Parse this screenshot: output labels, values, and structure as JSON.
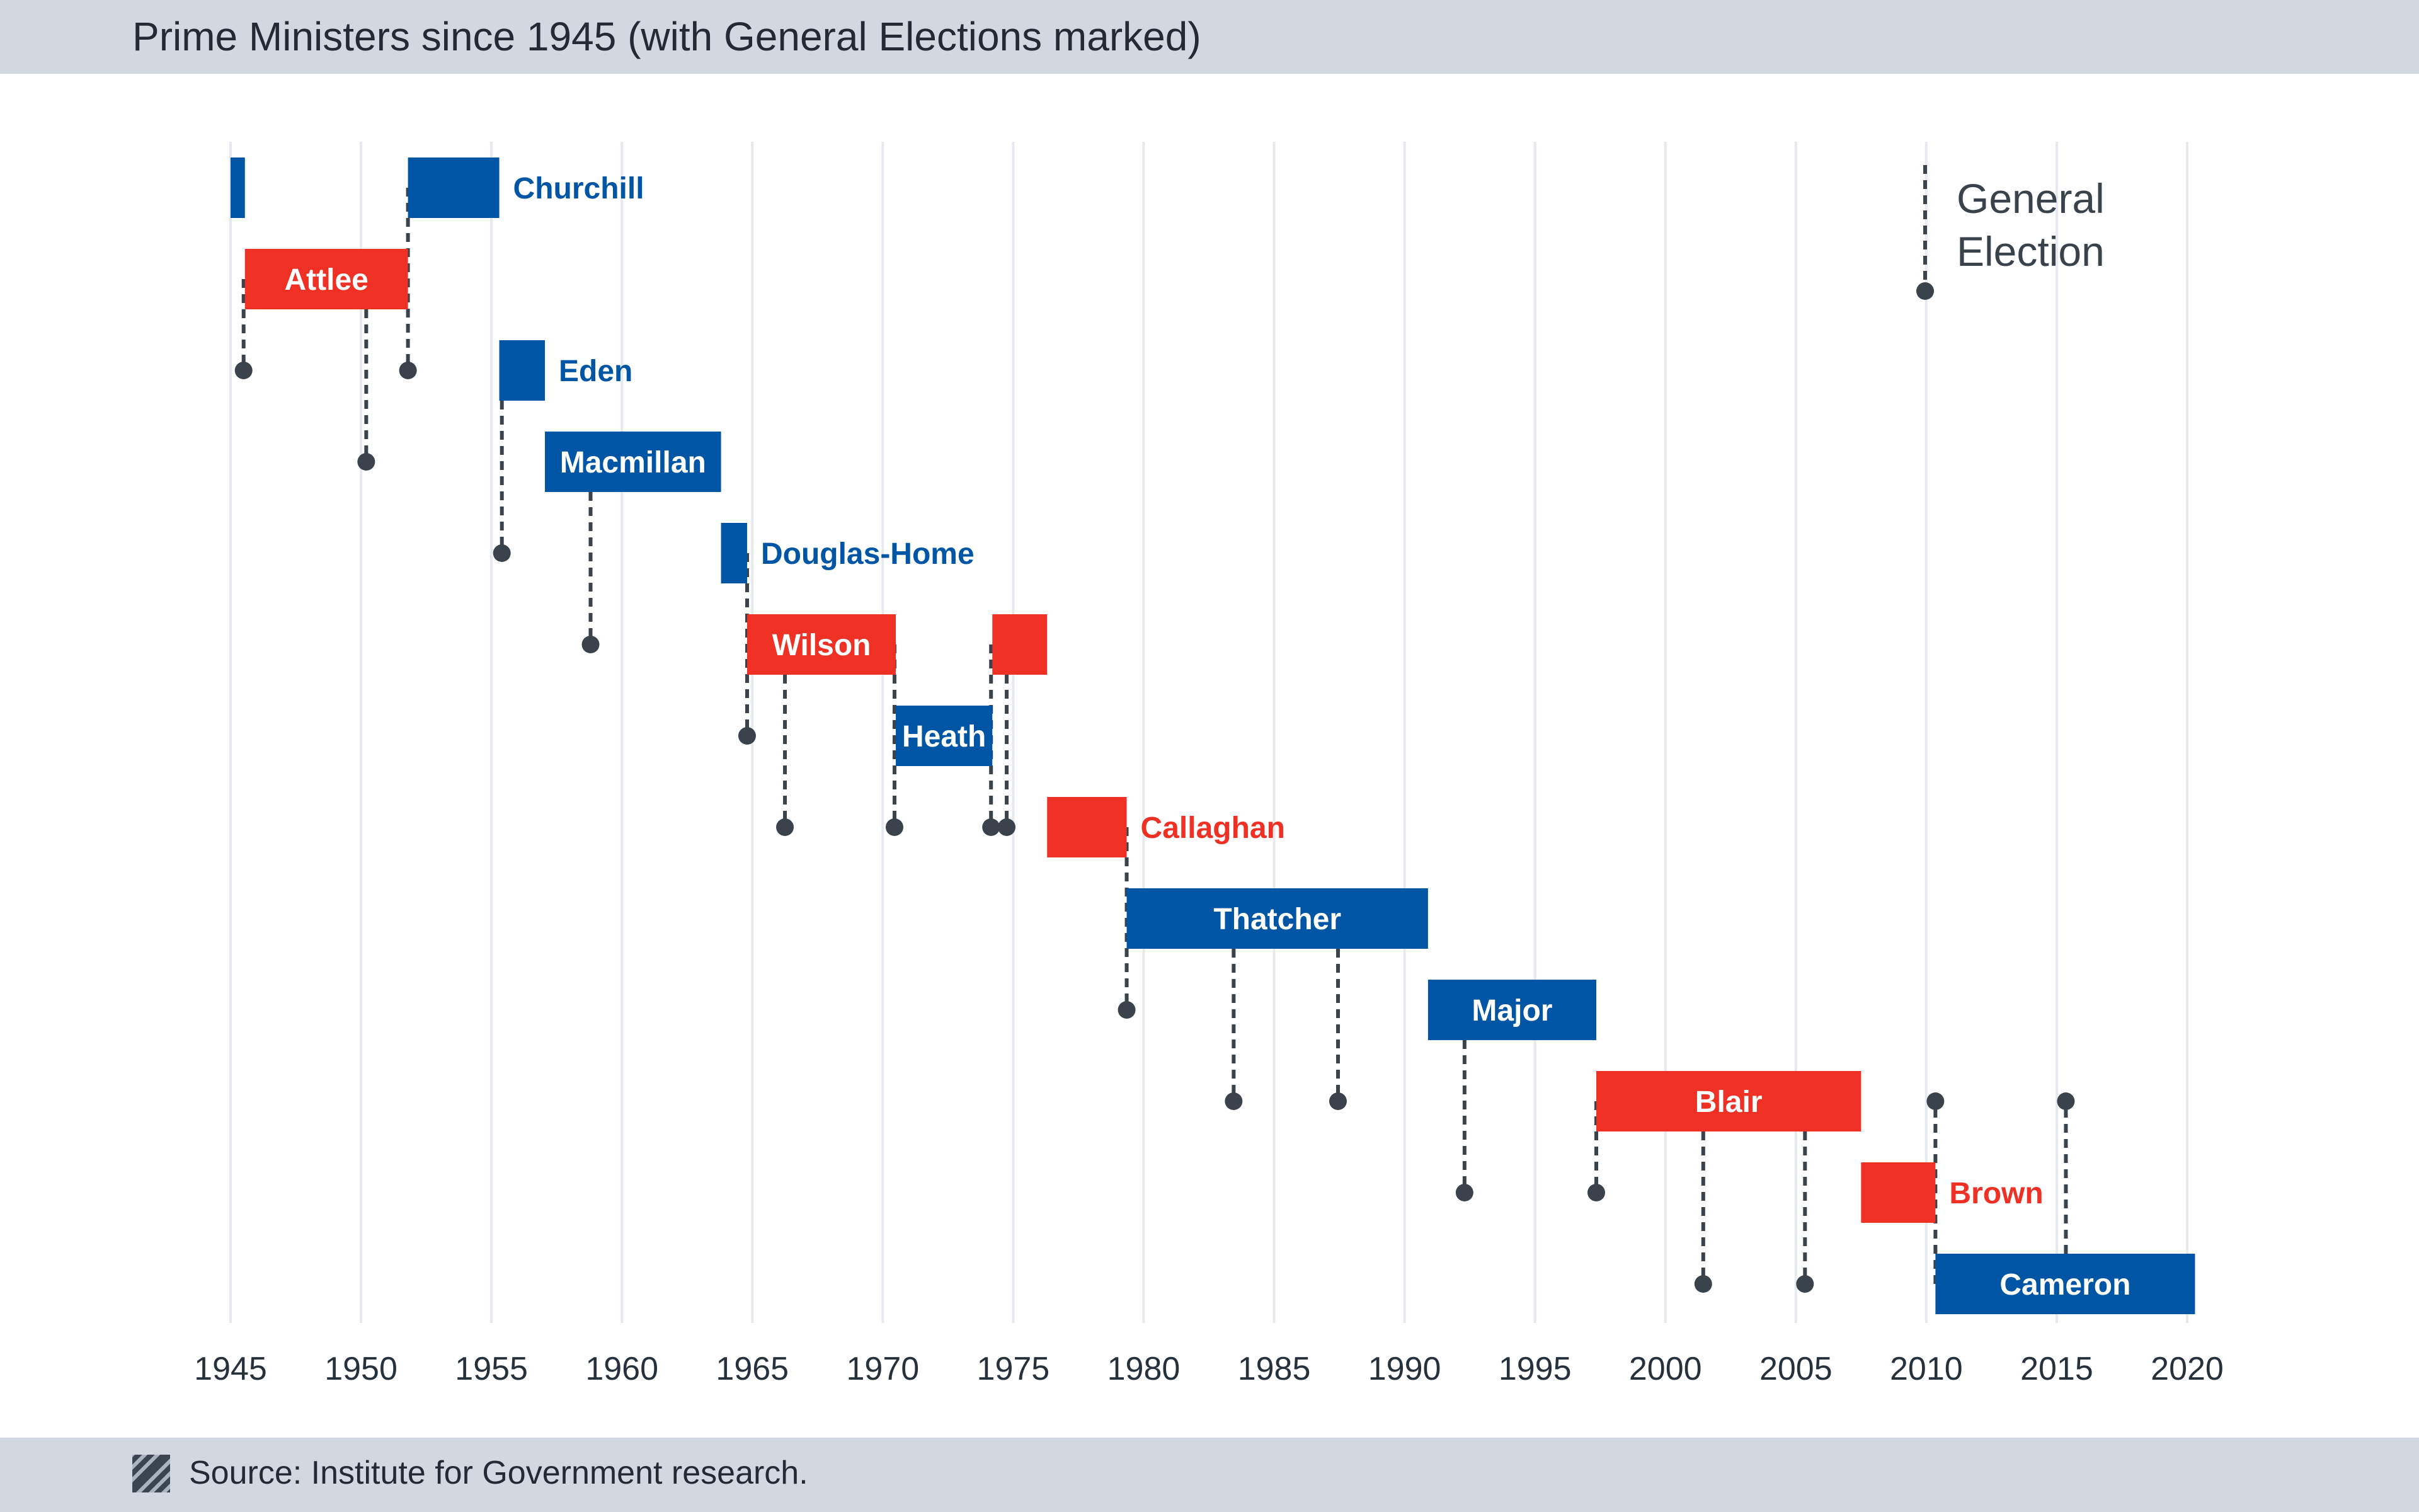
{
  "header": {
    "title": "Prime Ministers since 1945 (with General Elections marked)"
  },
  "footer": {
    "source_text": "Source: Institute for Government research."
  },
  "colors": {
    "labour": "#ee3124",
    "conservative": "#0056a5",
    "election_marker": "#3a424c",
    "gridline": "#e6e9ee",
    "header_bg": "#d2d8e0"
  },
  "chart_data": {
    "type": "timeline",
    "title": "Prime Ministers since 1945 (with General Elections marked)",
    "xlim": [
      1945,
      2020
    ],
    "x_ticks": [
      "1945",
      "1950",
      "1955",
      "1960",
      "1965",
      "1970",
      "1975",
      "1980",
      "1985",
      "1990",
      "1995",
      "2000",
      "2005",
      "2010",
      "2015",
      "2020"
    ],
    "grid": true,
    "legend": {
      "label_line1": "General",
      "label_line2": "Election",
      "placement": "top-right"
    },
    "terms": [
      {
        "name": "",
        "party": "conservative",
        "start": 1945.0,
        "end": 1945.55,
        "row": 0
      },
      {
        "name": "Churchill",
        "party": "conservative",
        "start": 1951.8,
        "end": 1955.3,
        "row": 0,
        "label_pos": "right"
      },
      {
        "name": "Attlee",
        "party": "labour",
        "start": 1945.55,
        "end": 1951.8,
        "row": 1,
        "label_pos": "inside"
      },
      {
        "name": "Eden",
        "party": "conservative",
        "start": 1955.3,
        "end": 1957.05,
        "row": 2,
        "label_pos": "right"
      },
      {
        "name": "Macmillan",
        "party": "conservative",
        "start": 1957.05,
        "end": 1963.8,
        "row": 3,
        "label_pos": "inside"
      },
      {
        "name": "Douglas-Home",
        "party": "conservative",
        "start": 1963.8,
        "end": 1964.8,
        "row": 4,
        "label_pos": "right"
      },
      {
        "name": "Wilson",
        "party": "labour",
        "start": 1964.8,
        "end": 1970.5,
        "row": 5,
        "label_pos": "inside"
      },
      {
        "name": "",
        "party": "labour",
        "start": 1974.2,
        "end": 1976.3,
        "row": 5
      },
      {
        "name": "Heath",
        "party": "conservative",
        "start": 1970.5,
        "end": 1974.2,
        "row": 6,
        "label_pos": "inside"
      },
      {
        "name": "Callaghan",
        "party": "labour",
        "start": 1976.3,
        "end": 1979.35,
        "row": 7,
        "label_pos": "right"
      },
      {
        "name": "Thatcher",
        "party": "conservative",
        "start": 1979.35,
        "end": 1990.9,
        "row": 8,
        "label_pos": "inside"
      },
      {
        "name": "Major",
        "party": "conservative",
        "start": 1990.9,
        "end": 1997.35,
        "row": 9,
        "label_pos": "inside"
      },
      {
        "name": "Blair",
        "party": "labour",
        "start": 1997.35,
        "end": 2007.5,
        "row": 10,
        "label_pos": "inside"
      },
      {
        "name": "Brown",
        "party": "labour",
        "start": 2007.5,
        "end": 2010.35,
        "row": 11,
        "label_pos": "right"
      },
      {
        "name": "Cameron",
        "party": "conservative",
        "start": 2010.35,
        "end": 2020.3,
        "row": 12,
        "label_pos": "inside"
      }
    ],
    "elections": [
      {
        "year": 1945.5,
        "from_row": 1,
        "to_row": 2
      },
      {
        "year": 1950.2,
        "from_row": 1,
        "to_row": 3
      },
      {
        "year": 1951.8,
        "from_row": 0,
        "to_row": 2
      },
      {
        "year": 1955.4,
        "from_row": 2,
        "to_row": 4
      },
      {
        "year": 1958.8,
        "from_row": 3,
        "to_row": 5
      },
      {
        "year": 1964.8,
        "from_row": 4,
        "to_row": 6
      },
      {
        "year": 1966.25,
        "from_row": 5,
        "to_row": 7
      },
      {
        "year": 1970.45,
        "from_row": 5,
        "to_row": 7
      },
      {
        "year": 1974.15,
        "from_row": 5,
        "to_row": 7
      },
      {
        "year": 1974.75,
        "from_row": 5,
        "to_row": 7
      },
      {
        "year": 1979.35,
        "from_row": 7,
        "to_row": 9
      },
      {
        "year": 1983.45,
        "from_row": 8,
        "to_row": 10
      },
      {
        "year": 1987.45,
        "from_row": 8,
        "to_row": 10
      },
      {
        "year": 1992.3,
        "from_row": 9,
        "to_row": 11
      },
      {
        "year": 1997.35,
        "from_row": 10,
        "to_row": 11
      },
      {
        "year": 2001.45,
        "from_row": 10,
        "to_row": 12
      },
      {
        "year": 2005.35,
        "from_row": 10,
        "to_row": 12
      },
      {
        "year": 2010.35,
        "from_row": 12,
        "to_row": 10
      },
      {
        "year": 2015.35,
        "from_row": 12,
        "to_row": 10
      }
    ]
  }
}
